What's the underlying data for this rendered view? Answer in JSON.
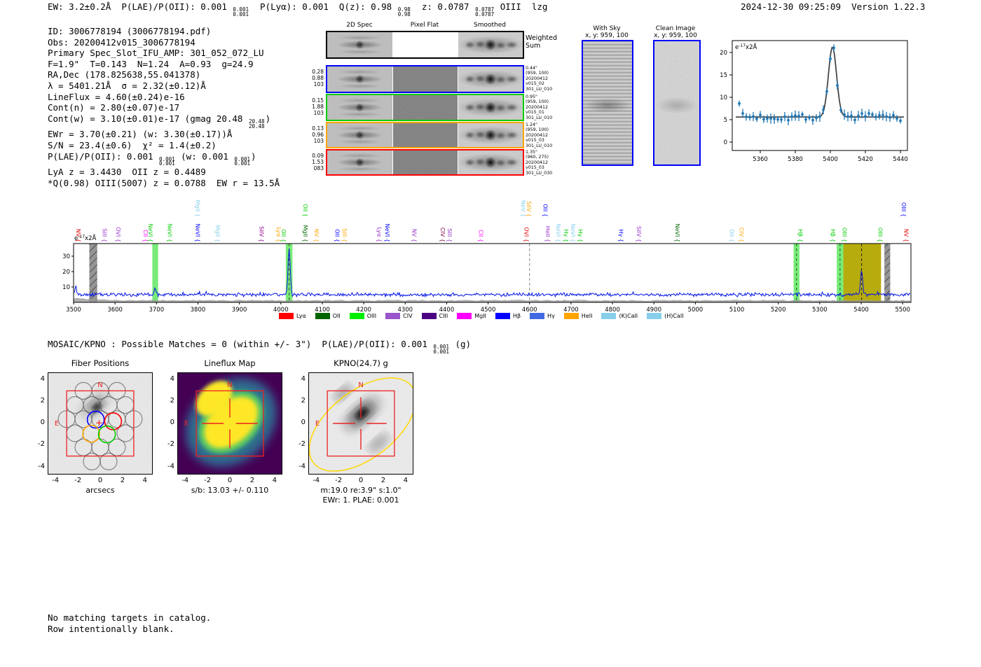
{
  "header": {
    "segments": [
      {
        "t": "EW: 3.2±0.2Å  P(LAE)/P(OII): 0.001 "
      },
      {
        "sup": "0.001",
        "sub": "0.001"
      },
      {
        "t": "  P(Lyα): 0.001  Q(z): 0.98 "
      },
      {
        "sup": "0.98",
        "sub": "0.98"
      },
      {
        "t": "  z: 0.0787 "
      },
      {
        "sup": "0.0787",
        "sub": "0.0787"
      },
      {
        "t": " OIII  lzg"
      }
    ],
    "timestamp": "2024-12-30 09:25:09",
    "version": "Version 1.22.3"
  },
  "info_block": {
    "lines": [
      [
        {
          "t": "ID: 3006778194 (3006778194.pdf)"
        }
      ],
      [
        {
          "t": "Obs: 20200412v015_3006778194"
        }
      ],
      [
        {
          "t": "Primary Spec_Slot_IFU_AMP: 301_052_072_LU"
        }
      ],
      [
        {
          "t": "F=1.9\"  T=0.143  N=1.24  A=0.93  g=24.9"
        }
      ],
      [
        {
          "t": "RA,Dec (178.825638,55.041378)"
        }
      ],
      [
        {
          "t": "λ = 5401.21Å  σ = 2.32(±0.12)Å"
        }
      ],
      [
        {
          "t": "LineFlux = 4.60(±0.24)e-16"
        }
      ],
      [
        {
          "t": "Cont(n) = 2.80(±0.07)e-17"
        }
      ],
      [
        {
          "t": "Cont(w) = 3.10(±0.01)e-17 (gmag 20.48 "
        },
        {
          "sup": "20.48",
          "sub": "20.48"
        },
        {
          "t": ")"
        }
      ],
      [
        {
          "t": "EWr = 3.70(±0.21) (w: 3.30(±0.17))Å"
        }
      ],
      [
        {
          "t": "S/N = 23.4(±0.6)  χ² = 1.4(±0.2)"
        }
      ],
      [
        {
          "t": "P(LAE)/P(OII): 0.001 "
        },
        {
          "sup": "0.001",
          "sub": "0.001"
        },
        {
          "t": " (w: 0.001 "
        },
        {
          "sup": "0.001",
          "sub": "0.001"
        },
        {
          "t": ")"
        }
      ],
      [
        {
          "t": "LyA z = 3.4430  OII z = 0.4489"
        }
      ],
      [
        {
          "t": "*Q(0.98) OIII(5007) z = 0.0788  EW r = 13.5Å"
        }
      ]
    ]
  },
  "spec2d": {
    "col_titles": [
      "2D Spec",
      "Pixel Flat",
      "Smoothed"
    ],
    "weighted_label": [
      "Weighted",
      "Sum"
    ],
    "rows": [
      {
        "border": "#000000",
        "left": [],
        "right": []
      },
      {
        "border": "#0000ff",
        "left": [
          "0.28",
          "0.88",
          "103"
        ],
        "right": [
          "0.44\"",
          "(959, 100)",
          "20200412",
          "v015_02",
          "301_LU_010"
        ]
      },
      {
        "border": "#00cc00",
        "left": [
          "0.15",
          "1.88",
          "103"
        ],
        "right": [
          "0.95\"",
          "(959, 100)",
          "20200412",
          "v015_01",
          "301_LU_010"
        ]
      },
      {
        "border": "#ffa500",
        "left": [
          "0.13",
          "0.96",
          "103"
        ],
        "right": [
          "1.24\"",
          "(959, 100)",
          "20200412",
          "v015_03",
          "301_LU_010"
        ]
      },
      {
        "border": "#ff0000",
        "left": [
          "0.09",
          "1.53",
          "083"
        ],
        "right": [
          "1.35\"",
          "(960, 275)",
          "20200412",
          "v015_03",
          "301_LU_030"
        ]
      }
    ]
  },
  "sky_panels": [
    {
      "title": "With Sky",
      "subtitle": "x, y: 959, 100"
    },
    {
      "title": "Clean Image",
      "subtitle": "x, y: 959, 100"
    }
  ],
  "chart_data": [
    {
      "type": "scatter",
      "title": "emission line fit zoom",
      "unit": {
        "base": "e",
        "exp": "-17",
        "suffix": "x2Å"
      },
      "xlim": [
        5344,
        5444
      ],
      "ylim": [
        -1.9,
        22.7
      ],
      "xticks": [
        5360,
        5380,
        5400,
        5420,
        5440
      ],
      "yticks": [
        0,
        5,
        10,
        15,
        20
      ],
      "fit": {
        "continuum": 5.6,
        "amplitude": 15.6,
        "center": 5401.21,
        "sigma": 2.32
      },
      "points": {
        "x_start": 5348,
        "x_step": 2,
        "n": 47,
        "baseline": 5.6,
        "scatter": 1.7,
        "err": 0.9
      },
      "colors": {
        "points": "#1f77b4",
        "fit": "#3d3d3d"
      }
    },
    {
      "type": "line",
      "title": "full spectrum",
      "unit": {
        "base": "e",
        "exp": "-17",
        "suffix": "x2Å"
      },
      "xlim": [
        3500,
        5520
      ],
      "ylim": [
        -0.5,
        38
      ],
      "xticks": [
        3500,
        3600,
        3700,
        3800,
        3900,
        4000,
        4100,
        4200,
        4300,
        4400,
        4500,
        4600,
        4700,
        4800,
        4900,
        5000,
        5100,
        5200,
        5300,
        5400,
        5500
      ],
      "yticks": [
        10,
        20,
        30
      ],
      "baseline": 5.0,
      "line_color": "#0014e6",
      "peaks": [
        {
          "center": 3505,
          "height": 5.0,
          "sigma": 1.6
        },
        {
          "center": 3697,
          "height": 3.2,
          "sigma": 2.5
        },
        {
          "center": 4020,
          "height": 30.0,
          "sigma": 2.6
        },
        {
          "center": 5401,
          "height": 16.2,
          "sigma": 2.4
        }
      ],
      "shaded_bands": [
        {
          "x0": 3538,
          "x1": 3557,
          "type": "hatched",
          "color": "#8f8f8f",
          "opacity": 0.95
        },
        {
          "x0": 3690,
          "x1": 3704,
          "type": "solid",
          "color": "#57e657",
          "opacity": 0.8
        },
        {
          "x0": 4012,
          "x1": 4028,
          "type": "solid",
          "color": "#57e657",
          "opacity": 0.8
        },
        {
          "x0": 5237,
          "x1": 5251,
          "type": "solid",
          "color": "#57e657",
          "opacity": 0.8
        },
        {
          "x0": 5341,
          "x1": 5357,
          "type": "solid",
          "color": "#57e657",
          "opacity": 0.8
        },
        {
          "x0": 5357,
          "x1": 5448,
          "type": "solid",
          "color": "#b3a800",
          "opacity": 0.95
        },
        {
          "x0": 5456,
          "x1": 5470,
          "type": "hatched",
          "color": "#8f8f8f",
          "opacity": 0.95
        }
      ],
      "dashed_lines": [
        {
          "x": 4020,
          "color": "#454545"
        },
        {
          "x": 4600,
          "color": "#888888"
        },
        {
          "x": 5244,
          "color": "#1e641e"
        },
        {
          "x": 5349,
          "color": "#1e641e"
        },
        {
          "x": 5401,
          "color": "#222222"
        }
      ],
      "legend": [
        {
          "label": "Lyα",
          "color": "#ff0000"
        },
        {
          "label": "OII",
          "color": "#006400"
        },
        {
          "label": "OIII",
          "color": "#00ee00"
        },
        {
          "label": "CIV",
          "color": "#9955cc"
        },
        {
          "label": "CIII",
          "color": "#4b0082"
        },
        {
          "label": "MgII",
          "color": "#ff00ff"
        },
        {
          "label": "Hβ",
          "color": "#0000ff"
        },
        {
          "label": "Hγ",
          "color": "#4169e1"
        },
        {
          "label": "HeII",
          "color": "#ffa500"
        },
        {
          "label": "(K)CaII",
          "color": "#87ceeb"
        },
        {
          "label": "(H)CaII",
          "color": "#87ceeb"
        }
      ],
      "line_labels": [
        {
          "text": "NV",
          "x": 3502,
          "tier": 0,
          "color": "#e60000"
        },
        {
          "text": "SiII",
          "x": 3565,
          "tier": 0,
          "color": "#9932cc"
        },
        {
          "text": "OVI",
          "x": 3598,
          "tier": 0,
          "color": "#9932cc"
        },
        {
          "text": "CII",
          "x": 3664,
          "tier": 0,
          "color": "#ff00ff"
        },
        {
          "text": "NeVI",
          "x": 3676,
          "tier": 0,
          "color": "#00cc00"
        },
        {
          "text": "NeVI",
          "x": 3722,
          "tier": 0,
          "color": "#00cc00"
        },
        {
          "text": "NeVI",
          "x": 3790,
          "tier": 0,
          "color": "#0000ff"
        },
        {
          "text": "MgII",
          "x": 3838,
          "tier": 0,
          "color": "#87ceeb"
        },
        {
          "text": "SiIV",
          "x": 3944,
          "tier": 0,
          "color": "#8b008b"
        },
        {
          "text": "Lyα",
          "x": 3985,
          "tier": 0,
          "color": "#ffa500"
        },
        {
          "text": "OII",
          "x": 3997,
          "tier": 0,
          "color": "#00cc00"
        },
        {
          "text": "MgII",
          "x": 4049,
          "tier": 0,
          "color": "#006400"
        },
        {
          "text": "NV",
          "x": 4076,
          "tier": 0,
          "color": "#ffa500"
        },
        {
          "text": "OII",
          "x": 4126,
          "tier": 0,
          "color": "#0000ff"
        },
        {
          "text": "SiII",
          "x": 4144,
          "tier": 0,
          "color": "#ffa500"
        },
        {
          "text": "Lyα",
          "x": 4228,
          "tier": 0,
          "color": "#9932cc"
        },
        {
          "text": "NeVI",
          "x": 4247,
          "tier": 0,
          "color": "#0000ff"
        },
        {
          "text": "NV",
          "x": 4312,
          "tier": 0,
          "color": "#9932cc"
        },
        {
          "text": "CIV",
          "x": 4381,
          "tier": 0,
          "color": "#800040"
        },
        {
          "text": "SiII",
          "x": 4398,
          "tier": 0,
          "color": "#9932cc"
        },
        {
          "text": "CII",
          "x": 4473,
          "tier": 0,
          "color": "#ff00ff"
        },
        {
          "text": "OVI",
          "x": 4583,
          "tier": 0,
          "color": "#e60000"
        },
        {
          "text": "HeII",
          "x": 4634,
          "tier": 0,
          "color": "#9932cc"
        },
        {
          "text": "NeVI",
          "x": 4660,
          "tier": 0,
          "color": "#87ceeb"
        },
        {
          "text": "Hγ",
          "x": 4678,
          "tier": 0,
          "color": "#00cc00"
        },
        {
          "text": "NeVI",
          "x": 4695,
          "tier": 0,
          "color": "#87ceeb"
        },
        {
          "text": "Hγ",
          "x": 4713,
          "tier": 0,
          "color": "#00cc00"
        },
        {
          "text": "Hγ",
          "x": 4811,
          "tier": 0,
          "color": "#0000ff"
        },
        {
          "text": "SiIV",
          "x": 4854,
          "tier": 0,
          "color": "#9932cc"
        },
        {
          "text": "NeVI",
          "x": 4947,
          "tier": 0,
          "color": "#006400"
        },
        {
          "text": "OII",
          "x": 5078,
          "tier": 0,
          "color": "#87ceeb"
        },
        {
          "text": "CIV",
          "x": 5102,
          "tier": 0,
          "color": "#ffa500"
        },
        {
          "text": "Hβ",
          "x": 5244,
          "tier": 0,
          "color": "#00cc00"
        },
        {
          "text": "Hβ",
          "x": 5322,
          "tier": 0,
          "color": "#00cc00"
        },
        {
          "text": "OIII",
          "x": 5350,
          "tier": 0,
          "color": "#00cc00"
        },
        {
          "text": "OIII",
          "x": 5436,
          "tier": 0,
          "color": "#00cc00"
        },
        {
          "text": "NV",
          "x": 5499,
          "tier": 0,
          "color": "#e60000"
        },
        {
          "text": "MgII",
          "x": 3790,
          "tier": 1,
          "color": "#87ceeb"
        },
        {
          "text": "OII",
          "x": 4049,
          "tier": 1,
          "color": "#00cc00"
        },
        {
          "text": "NeV",
          "x": 4575,
          "tier": 1,
          "color": "#87ceeb"
        },
        {
          "text": "SiIV",
          "x": 4589,
          "tier": 1,
          "color": "#ffa500"
        },
        {
          "text": "OII",
          "x": 4628,
          "tier": 1,
          "color": "#0000ff"
        },
        {
          "text": "OIII",
          "x": 5493,
          "tier": 1,
          "color": "#0000ff"
        }
      ]
    }
  ],
  "mosaic_line": {
    "segments": [
      {
        "t": "MOSAIC/KPNO : Possible Matches = 0 (within +/- 3\")  P(LAE)/P(OII): 0.001 "
      },
      {
        "sup": "0.001",
        "sub": "0.001"
      },
      {
        "t": " (g)"
      }
    ]
  },
  "cutouts": [
    {
      "title": "Fiber Positions",
      "xlabel": "arcsecs",
      "xticks": [
        "-4",
        "-2",
        "0",
        "2",
        "4"
      ],
      "yticks": [
        "4",
        "2",
        "0",
        "-2",
        "-4"
      ],
      "compass_n": "N",
      "compass_e": "E",
      "captions": []
    },
    {
      "title": "Lineflux Map",
      "xlabel": "",
      "xticks": [
        "-4",
        "-2",
        "0",
        "2",
        "4"
      ],
      "yticks": [
        "4",
        "2",
        "0",
        "-2",
        "-4"
      ],
      "compass_n": "N",
      "compass_e": "E",
      "captions": [
        "s/b: 13.03 +/- 0.110"
      ]
    },
    {
      "title": "KPNO(24.7) g",
      "xlabel": "",
      "xticks": [
        "-4",
        "-2",
        "0",
        "2",
        "4"
      ],
      "yticks": [
        "4",
        "2",
        "0",
        "-2",
        "-4"
      ],
      "compass_n": "N",
      "compass_e": "E",
      "captions": [
        "m:19.0 re:3.9\" s:1.0\"",
        "EWr: 1. PLAE: 0.001"
      ]
    }
  ],
  "footer": {
    "lines": [
      "No matching targets in catalog.",
      "Row intentionally blank."
    ]
  }
}
